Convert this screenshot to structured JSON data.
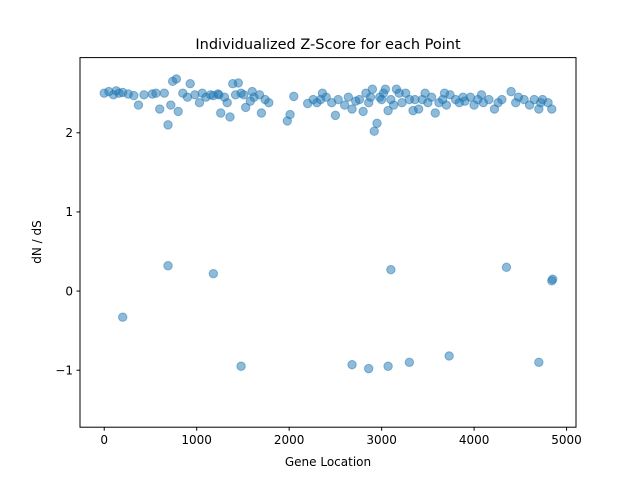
{
  "chart_data": {
    "type": "scatter",
    "title": "Individualized Z-Score for each Point",
    "xlabel": "Gene Location",
    "ylabel": "dN / dS",
    "xlim": [
      -262,
      5102
    ],
    "ylim": [
      -1.72,
      2.95
    ],
    "xticks": [
      0,
      1000,
      2000,
      3000,
      4000,
      5000
    ],
    "xtick_labels": [
      "0",
      "1000",
      "2000",
      "3000",
      "4000",
      "5000"
    ],
    "yticks": [
      -1,
      0,
      1,
      2
    ],
    "ytick_labels": [
      "−1",
      "0",
      "1",
      "2"
    ],
    "grid": false,
    "legend": "none",
    "marker_color": "#1f77b4",
    "marker_alpha": 0.5,
    "series": [
      {
        "points": [
          [
            0,
            2.5
          ],
          [
            50,
            2.52
          ],
          [
            100,
            2.48
          ],
          [
            130,
            2.53
          ],
          [
            160,
            2.5
          ],
          [
            200,
            2.51
          ],
          [
            260,
            2.49
          ],
          [
            320,
            2.47
          ],
          [
            370,
            2.35
          ],
          [
            430,
            2.48
          ],
          [
            520,
            2.49
          ],
          [
            560,
            2.5
          ],
          [
            600,
            2.3
          ],
          [
            650,
            2.5
          ],
          [
            690,
            2.1
          ],
          [
            720,
            2.35
          ],
          [
            740,
            2.65
          ],
          [
            780,
            2.68
          ],
          [
            800,
            2.27
          ],
          [
            850,
            2.5
          ],
          [
            900,
            2.45
          ],
          [
            930,
            2.62
          ],
          [
            980,
            2.48
          ],
          [
            1030,
            2.38
          ],
          [
            1060,
            2.5
          ],
          [
            1100,
            2.45
          ],
          [
            1150,
            2.48
          ],
          [
            1180,
            2.47
          ],
          [
            1230,
            2.49
          ],
          [
            1260,
            2.25
          ],
          [
            1300,
            2.45
          ],
          [
            1330,
            2.38
          ],
          [
            1360,
            2.2
          ],
          [
            1390,
            2.62
          ],
          [
            1420,
            2.48
          ],
          [
            1450,
            2.63
          ],
          [
            1480,
            2.5
          ],
          [
            1510,
            2.48
          ],
          [
            1530,
            2.32
          ],
          [
            1580,
            2.4
          ],
          [
            1620,
            2.45
          ],
          [
            1680,
            2.48
          ],
          [
            1700,
            2.25
          ],
          [
            1740,
            2.42
          ],
          [
            1780,
            2.38
          ],
          [
            1980,
            2.15
          ],
          [
            2010,
            2.23
          ],
          [
            2050,
            2.46
          ],
          [
            2200,
            2.37
          ],
          [
            2260,
            2.42
          ],
          [
            2300,
            2.38
          ],
          [
            2340,
            2.42
          ],
          [
            2360,
            2.5
          ],
          [
            2400,
            2.45
          ],
          [
            2460,
            2.38
          ],
          [
            2500,
            2.22
          ],
          [
            2530,
            2.42
          ],
          [
            2600,
            2.35
          ],
          [
            2640,
            2.45
          ],
          [
            2680,
            2.3
          ],
          [
            2720,
            2.4
          ],
          [
            2760,
            2.42
          ],
          [
            2800,
            2.27
          ],
          [
            2830,
            2.5
          ],
          [
            2860,
            2.38
          ],
          [
            2880,
            2.45
          ],
          [
            2900,
            2.55
          ],
          [
            2920,
            2.02
          ],
          [
            2950,
            2.12
          ],
          [
            2980,
            2.45
          ],
          [
            3000,
            2.42
          ],
          [
            3020,
            2.5
          ],
          [
            3040,
            2.55
          ],
          [
            3070,
            2.28
          ],
          [
            3100,
            2.42
          ],
          [
            3130,
            2.35
          ],
          [
            3160,
            2.55
          ],
          [
            3190,
            2.5
          ],
          [
            3220,
            2.38
          ],
          [
            3260,
            2.5
          ],
          [
            3300,
            2.42
          ],
          [
            3340,
            2.28
          ],
          [
            3360,
            2.42
          ],
          [
            3400,
            2.3
          ],
          [
            3440,
            2.42
          ],
          [
            3470,
            2.5
          ],
          [
            3500,
            2.38
          ],
          [
            3540,
            2.45
          ],
          [
            3580,
            2.25
          ],
          [
            3620,
            2.38
          ],
          [
            3660,
            2.42
          ],
          [
            3700,
            2.35
          ],
          [
            3740,
            2.48
          ],
          [
            3800,
            2.42
          ],
          [
            3840,
            2.38
          ],
          [
            3900,
            2.4
          ],
          [
            3960,
            2.45
          ],
          [
            4000,
            2.35
          ],
          [
            4040,
            2.42
          ],
          [
            4080,
            2.48
          ],
          [
            4100,
            2.38
          ],
          [
            4160,
            2.42
          ],
          [
            4220,
            2.3
          ],
          [
            4260,
            2.38
          ],
          [
            4300,
            2.42
          ],
          [
            4400,
            2.52
          ],
          [
            4450,
            2.38
          ],
          [
            4480,
            2.45
          ],
          [
            4540,
            2.42
          ],
          [
            4600,
            2.35
          ],
          [
            4650,
            2.42
          ],
          [
            4700,
            2.3
          ],
          [
            4720,
            2.38
          ],
          [
            4740,
            2.42
          ],
          [
            4800,
            2.38
          ],
          [
            4840,
            2.3
          ],
          [
            1240,
            2.48
          ],
          [
            1600,
            2.52
          ],
          [
            3680,
            2.5
          ],
          [
            3880,
            2.45
          ],
          [
            200,
            -0.33
          ],
          [
            4840,
            0.13
          ],
          [
            4850,
            0.15
          ],
          [
            690,
            0.32
          ],
          [
            1180,
            0.22
          ],
          [
            3100,
            0.27
          ],
          [
            4350,
            0.3
          ],
          [
            1480,
            -0.95
          ],
          [
            2680,
            -0.93
          ],
          [
            2860,
            -0.98
          ],
          [
            3070,
            -0.95
          ],
          [
            3300,
            -0.9
          ],
          [
            3730,
            -0.82
          ],
          [
            4700,
            -0.9
          ]
        ]
      }
    ]
  }
}
